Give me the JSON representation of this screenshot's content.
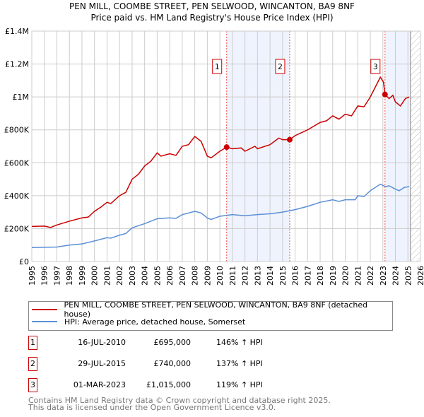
{
  "title_line1": "PEN MILL, COOMBE STREET, PEN SELWOOD, WINCANTON, BA9 8NF",
  "title_line2": "Price paid vs. HM Land Registry's House Price Index (HPI)",
  "chart_data": {
    "type": "line",
    "xlim": [
      1995,
      2026
    ],
    "ylim": [
      0,
      1400000
    ],
    "grid": true,
    "yticks": [
      {
        "v": 0,
        "label": "£0"
      },
      {
        "v": 200000,
        "label": "£200K"
      },
      {
        "v": 400000,
        "label": "£400K"
      },
      {
        "v": 600000,
        "label": "£600K"
      },
      {
        "v": 800000,
        "label": "£800K"
      },
      {
        "v": 1000000,
        "label": "£1M"
      },
      {
        "v": 1200000,
        "label": "£1.2M"
      },
      {
        "v": 1400000,
        "label": "£1.4M"
      }
    ],
    "xticks": [
      "1995",
      "1996",
      "1997",
      "1998",
      "1999",
      "2000",
      "2001",
      "2002",
      "2003",
      "2004",
      "2005",
      "2006",
      "2007",
      "2008",
      "2009",
      "2010",
      "2011",
      "2012",
      "2013",
      "2014",
      "2015",
      "2016",
      "2017",
      "2018",
      "2019",
      "2020",
      "2021",
      "2022",
      "2023",
      "2024",
      "2025",
      "2026"
    ],
    "shaded_ranges": [
      [
        2010.54,
        2015.57
      ],
      [
        2023.17,
        2025.2
      ]
    ],
    "forecast_start": 2025.2,
    "series": [
      {
        "name": "PEN MILL, COOMBE STREET, PEN SELWOOD, WINCANTON, BA9 8NF (detached house)",
        "color": "#cc0000",
        "points": [
          [
            1995,
            213000
          ],
          [
            1996,
            215000
          ],
          [
            1996.5,
            207000
          ],
          [
            1997,
            222000
          ],
          [
            1998,
            245000
          ],
          [
            1999,
            265000
          ],
          [
            1999.5,
            270000
          ],
          [
            2000,
            305000
          ],
          [
            2000.5,
            330000
          ],
          [
            2001,
            360000
          ],
          [
            2001.3,
            352000
          ],
          [
            2002,
            400000
          ],
          [
            2002.5,
            420000
          ],
          [
            2003,
            500000
          ],
          [
            2003.5,
            530000
          ],
          [
            2004,
            580000
          ],
          [
            2004.5,
            610000
          ],
          [
            2005,
            660000
          ],
          [
            2005.3,
            640000
          ],
          [
            2006,
            655000
          ],
          [
            2006.5,
            645000
          ],
          [
            2007,
            700000
          ],
          [
            2007.5,
            710000
          ],
          [
            2008,
            760000
          ],
          [
            2008.5,
            730000
          ],
          [
            2009,
            640000
          ],
          [
            2009.3,
            630000
          ],
          [
            2010,
            670000
          ],
          [
            2010.54,
            695000
          ],
          [
            2011,
            685000
          ],
          [
            2011.7,
            690000
          ],
          [
            2012,
            670000
          ],
          [
            2012.8,
            700000
          ],
          [
            2013,
            685000
          ],
          [
            2014,
            710000
          ],
          [
            2014.7,
            750000
          ],
          [
            2015,
            740000
          ],
          [
            2015.57,
            740000
          ],
          [
            2016,
            765000
          ],
          [
            2017,
            800000
          ],
          [
            2018,
            845000
          ],
          [
            2018.5,
            855000
          ],
          [
            2019,
            885000
          ],
          [
            2019.5,
            865000
          ],
          [
            2020,
            895000
          ],
          [
            2020.5,
            885000
          ],
          [
            2021,
            945000
          ],
          [
            2021.5,
            940000
          ],
          [
            2022,
            1000000
          ],
          [
            2022.8,
            1120000
          ],
          [
            2023.05,
            1090000
          ],
          [
            2023.17,
            1015000
          ],
          [
            2023.5,
            990000
          ],
          [
            2023.8,
            1010000
          ],
          [
            2024,
            970000
          ],
          [
            2024.4,
            945000
          ],
          [
            2024.8,
            990000
          ],
          [
            2025.1,
            1000000
          ]
        ]
      },
      {
        "name": "HPI: Average price, detached house, Somerset",
        "color": "#5b8fd6",
        "points": [
          [
            1995,
            85000
          ],
          [
            1997,
            88000
          ],
          [
            1998,
            100000
          ],
          [
            1999,
            107000
          ],
          [
            2000,
            125000
          ],
          [
            2001,
            145000
          ],
          [
            2001.3,
            142000
          ],
          [
            2002,
            160000
          ],
          [
            2002.5,
            170000
          ],
          [
            2003,
            205000
          ],
          [
            2004,
            230000
          ],
          [
            2005,
            260000
          ],
          [
            2006,
            265000
          ],
          [
            2006.5,
            262000
          ],
          [
            2007,
            285000
          ],
          [
            2008,
            305000
          ],
          [
            2008.5,
            295000
          ],
          [
            2009,
            265000
          ],
          [
            2009.3,
            255000
          ],
          [
            2010,
            275000
          ],
          [
            2011,
            285000
          ],
          [
            2012,
            278000
          ],
          [
            2013,
            285000
          ],
          [
            2014,
            290000
          ],
          [
            2015,
            300000
          ],
          [
            2016,
            315000
          ],
          [
            2017,
            335000
          ],
          [
            2018,
            360000
          ],
          [
            2019,
            375000
          ],
          [
            2019.5,
            365000
          ],
          [
            2020,
            375000
          ],
          [
            2020.8,
            375000
          ],
          [
            2021,
            400000
          ],
          [
            2021.5,
            395000
          ],
          [
            2022,
            430000
          ],
          [
            2022.8,
            470000
          ],
          [
            2023.2,
            455000
          ],
          [
            2023.5,
            460000
          ],
          [
            2024,
            440000
          ],
          [
            2024.3,
            430000
          ],
          [
            2024.7,
            450000
          ],
          [
            2025.1,
            455000
          ]
        ]
      }
    ],
    "sales": [
      {
        "id": "1",
        "x": 2010.54,
        "y": 695000,
        "date": "16-JUL-2010",
        "price": "£695,000",
        "hpi": "146% ↑ HPI"
      },
      {
        "id": "2",
        "x": 2015.57,
        "y": 740000,
        "date": "29-JUL-2015",
        "price": "£740,000",
        "hpi": "137% ↑ HPI"
      },
      {
        "id": "3",
        "x": 2023.17,
        "y": 1015000,
        "date": "01-MAR-2023",
        "price": "£1,015,000",
        "hpi": "119% ↑ HPI"
      }
    ]
  },
  "footer_line1": "Contains HM Land Registry data © Crown copyright and database right 2025.",
  "footer_line2": "This data is licensed under the Open Government Licence v3.0."
}
